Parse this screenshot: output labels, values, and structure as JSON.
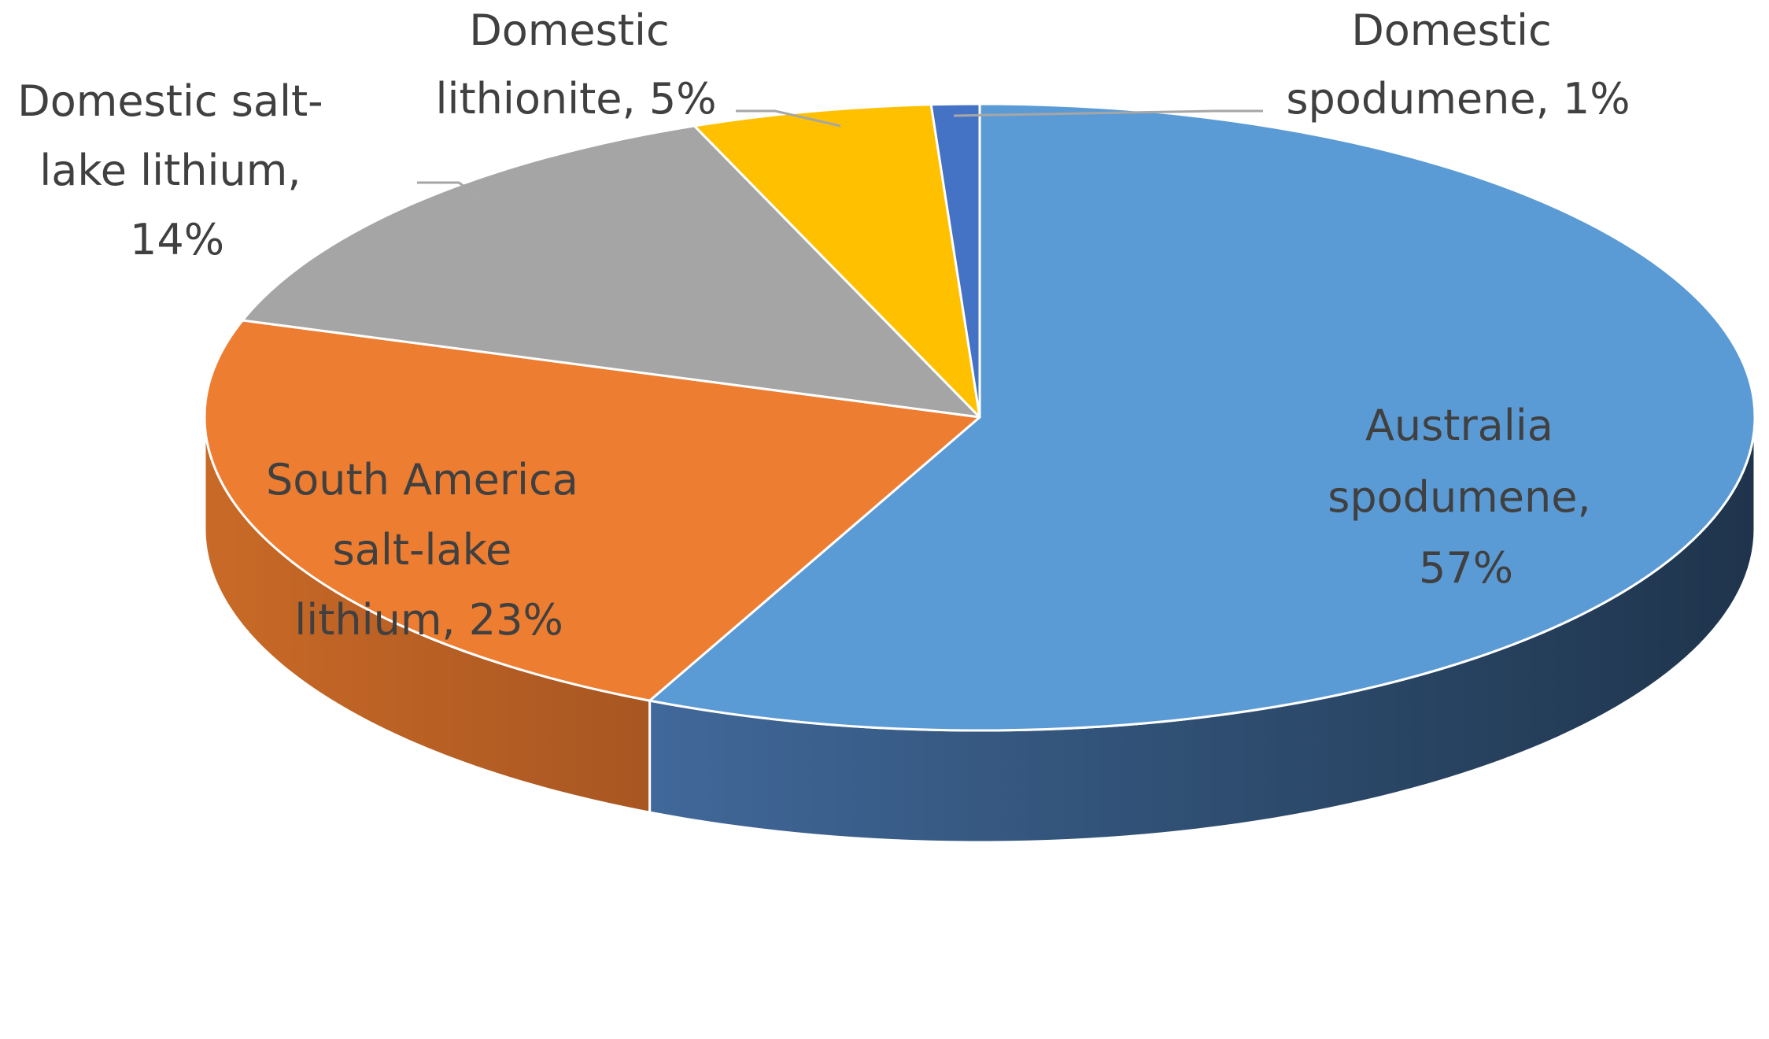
{
  "chart_data": {
    "type": "pie",
    "style": "3d",
    "title": "",
    "legend": "none",
    "slices": [
      {
        "category": "Australia spodumene",
        "value": 57,
        "display_lines": [
          "Australia",
          "spodumene,",
          "57%"
        ],
        "color": "#5b9bd5",
        "side_color": "#2b4a68"
      },
      {
        "category": "South America salt-lake lithium",
        "value": 23,
        "display_lines": [
          "South America",
          "salt-lake",
          "lithium, 23%"
        ],
        "color": "#ed7d31",
        "side_color": "#b85f22"
      },
      {
        "category": "Domestic salt-lake lithium",
        "value": 14,
        "display_lines": [
          "Domestic salt-",
          "lake lithium,",
          "14%"
        ],
        "color": "#a5a5a5",
        "side_color": "#7a7a7a"
      },
      {
        "category": "Domestic lithionite",
        "value": 5,
        "display_lines": [
          "Domestic",
          "lithionite, 5%"
        ],
        "color": "#ffc000",
        "side_color": "#c49400"
      },
      {
        "category": "Domestic spodumene",
        "value": 1,
        "display_lines": [
          "Domestic",
          "spodumene, 1%"
        ],
        "color": "#4472c4",
        "side_color": "#2f4f88"
      }
    ]
  }
}
